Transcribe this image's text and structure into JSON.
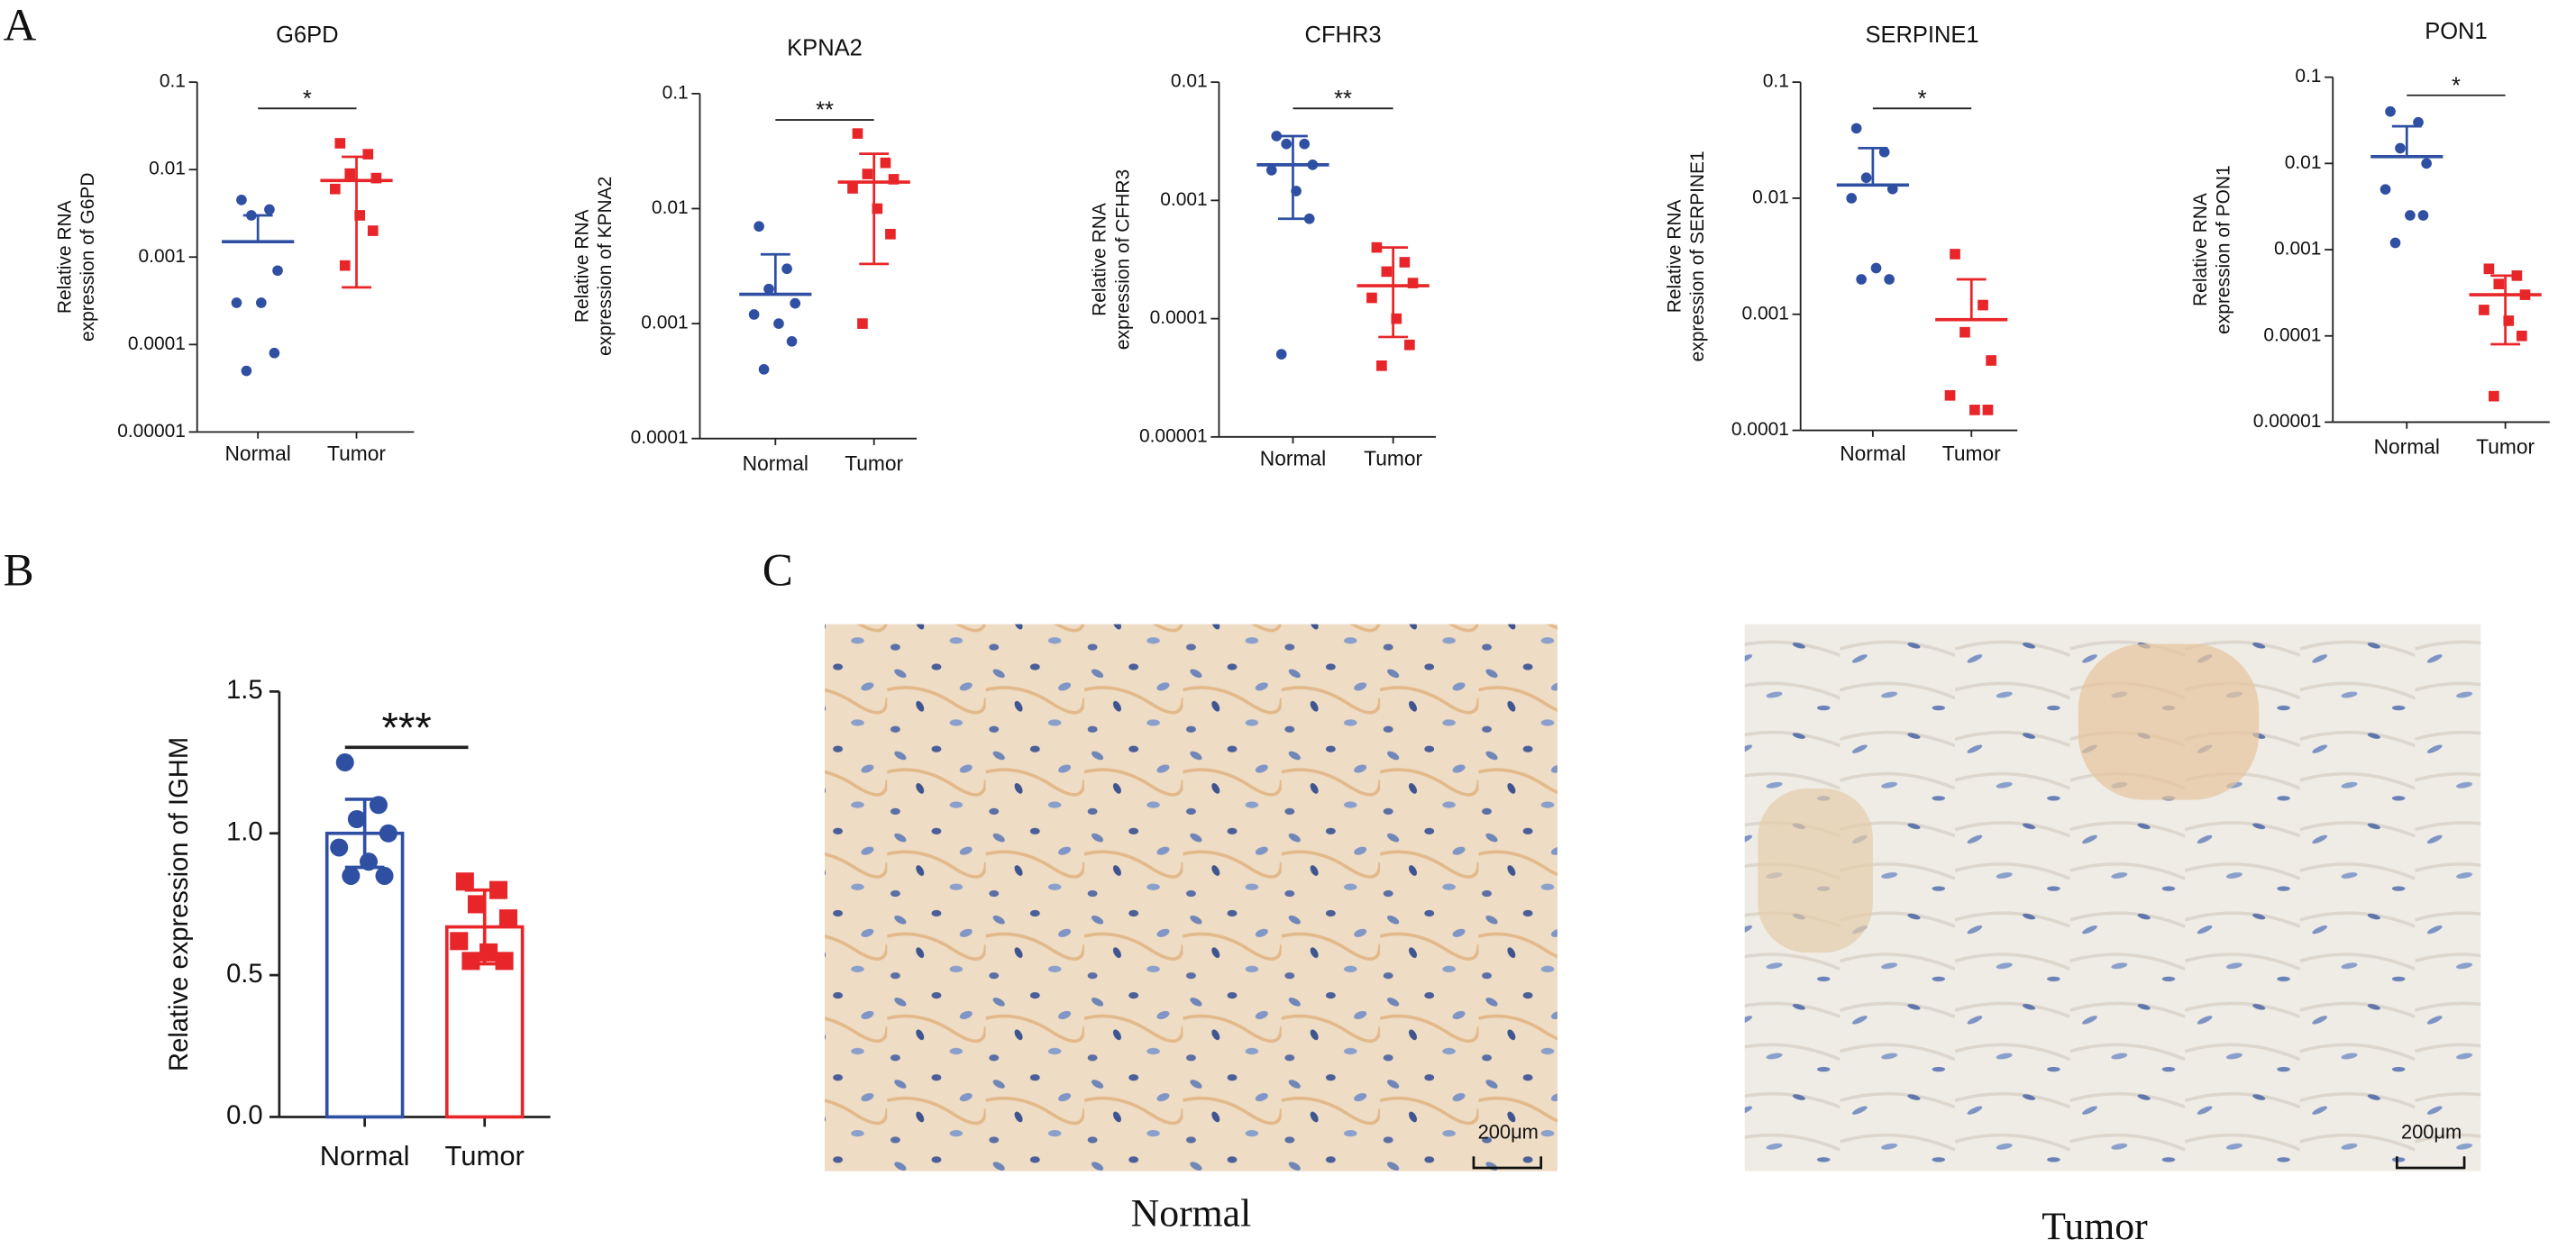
{
  "panels": [
    "A",
    "B",
    "C"
  ],
  "chart_data": [
    {
      "type": "dot",
      "title": "G6PD",
      "ylabel": [
        "Relative RNA",
        "expression of G6PD"
      ],
      "categories": [
        "Normal",
        "Tumor"
      ],
      "log_scale": true,
      "ylim": [
        1e-05,
        0.1
      ],
      "yticks": [
        0.1,
        0.01,
        0.001,
        0.0001,
        1e-05
      ],
      "significance": "*",
      "groups": [
        {
          "color": "#2f4fa2",
          "marker": "circle",
          "values": [
            0.0045,
            0.0035,
            0.003,
            0.0007,
            0.0003,
            0.0003,
            8e-05,
            5e-05
          ],
          "mean": 0.0015,
          "err_high": 0.003,
          "err_low": null
        },
        {
          "color": "#e8262a",
          "marker": "square",
          "values": [
            0.02,
            0.015,
            0.009,
            0.008,
            0.006,
            0.003,
            0.002,
            0.0008
          ],
          "mean": 0.0075,
          "err_high": 0.014,
          "err_low": 0.00045
        }
      ]
    },
    {
      "type": "dot",
      "title": "KPNA2",
      "ylabel": [
        "Relative RNA",
        "expression of KPNA2"
      ],
      "categories": [
        "Normal",
        "Tumor"
      ],
      "log_scale": true,
      "ylim": [
        0.0001,
        0.1
      ],
      "yticks": [
        0.1,
        0.01,
        0.001,
        0.0001
      ],
      "significance": "**",
      "groups": [
        {
          "color": "#2f4fa2",
          "marker": "circle",
          "values": [
            0.007,
            0.003,
            0.002,
            0.0015,
            0.0012,
            0.001,
            0.0007,
            0.0004
          ],
          "mean": 0.0018,
          "err_high": 0.004,
          "err_low": null
        },
        {
          "color": "#e8262a",
          "marker": "square",
          "values": [
            0.045,
            0.025,
            0.02,
            0.018,
            0.015,
            0.01,
            0.006,
            0.001
          ],
          "mean": 0.017,
          "err_high": 0.03,
          "err_low": 0.0033
        }
      ]
    },
    {
      "type": "dot",
      "title": "CFHR3",
      "ylabel": [
        "Relative RNA",
        "expression of CFHR3"
      ],
      "categories": [
        "Normal",
        "Tumor"
      ],
      "log_scale": true,
      "ylim": [
        1e-05,
        0.01
      ],
      "yticks": [
        0.01,
        0.001,
        0.0001,
        1e-05
      ],
      "significance": "**",
      "groups": [
        {
          "color": "#2f4fa2",
          "marker": "circle",
          "values": [
            0.0035,
            0.003,
            0.003,
            0.002,
            0.0018,
            0.0012,
            0.0007,
            5e-05
          ],
          "mean": 0.002,
          "err_high": 0.0035,
          "err_low": 0.0007
        },
        {
          "color": "#e8262a",
          "marker": "square",
          "values": [
            0.0004,
            0.0003,
            0.00025,
            0.0002,
            0.00015,
            0.0001,
            6e-05,
            4e-05
          ],
          "mean": 0.00019,
          "err_high": 0.0004,
          "err_low": 7e-05
        }
      ]
    },
    {
      "type": "dot",
      "title": "SERPINE1",
      "ylabel": [
        "Relative RNA",
        "expression of SERPINE1"
      ],
      "categories": [
        "Normal",
        "Tumor"
      ],
      "log_scale": true,
      "ylim": [
        0.0001,
        0.1
      ],
      "yticks": [
        0.1,
        0.01,
        0.001,
        0.0001
      ],
      "significance": "*",
      "groups": [
        {
          "color": "#2f4fa2",
          "marker": "circle",
          "values": [
            0.04,
            0.025,
            0.015,
            0.012,
            0.01,
            0.0025,
            0.002,
            0.002
          ],
          "mean": 0.013,
          "err_high": 0.027,
          "err_low": null
        },
        {
          "color": "#e8262a",
          "marker": "square",
          "values": [
            0.0033,
            0.0012,
            0.0007,
            0.0004,
            0.0002,
            0.00015,
            0.00015
          ],
          "mean": 0.0009,
          "err_high": 0.002,
          "err_low": null
        }
      ]
    },
    {
      "type": "dot",
      "title": "PON1",
      "ylabel": [
        "Relative RNA",
        "expression of PON1"
      ],
      "categories": [
        "Normal",
        "Tumor"
      ],
      "log_scale": true,
      "ylim": [
        1e-05,
        0.1
      ],
      "yticks": [
        0.1,
        0.01,
        0.001,
        0.0001,
        1e-05
      ],
      "significance": "*",
      "groups": [
        {
          "color": "#2f4fa2",
          "marker": "circle",
          "values": [
            0.04,
            0.03,
            0.015,
            0.01,
            0.005,
            0.0025,
            0.0025,
            0.0012
          ],
          "mean": 0.012,
          "err_high": 0.027,
          "err_low": null
        },
        {
          "color": "#e8262a",
          "marker": "square",
          "values": [
            0.0006,
            0.0005,
            0.0004,
            0.0003,
            0.0002,
            0.00015,
            0.0001,
            2e-05
          ],
          "mean": 0.0003,
          "err_high": 0.0005,
          "err_low": 8e-05
        }
      ]
    },
    {
      "type": "bar",
      "ylabel": "Relative expression of IGHM",
      "categories": [
        "Normal",
        "Tumor"
      ],
      "ylim": [
        0,
        1.5
      ],
      "yticks": [
        {
          "value": 0,
          "label": "0.0"
        },
        0.5,
        {
          "value": 1,
          "label": "1.0"
        },
        1.5
      ],
      "significance": "***",
      "groups": [
        {
          "color": "#2f4fa2",
          "marker": "circle",
          "values": [
            1.25,
            1.1,
            1.05,
            1.0,
            0.95,
            0.9,
            0.85,
            0.85
          ],
          "mean": 1.0,
          "error": 0.12
        },
        {
          "color": "#e8262a",
          "marker": "square",
          "values": [
            0.83,
            0.8,
            0.75,
            0.7,
            0.62,
            0.58,
            0.55,
            0.55
          ],
          "mean": 0.67,
          "error": 0.13
        }
      ]
    }
  ],
  "images": [
    {
      "caption": "Normal",
      "scale_bar": "200μm"
    },
    {
      "caption": "Tumor",
      "scale_bar": "200μm"
    }
  ]
}
